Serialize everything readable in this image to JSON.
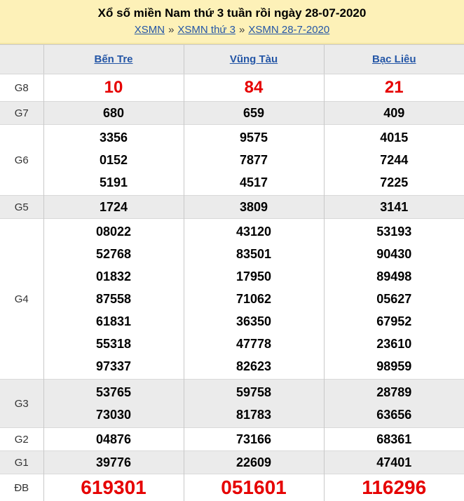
{
  "header": {
    "title": "Xổ số miền Nam thứ 3 tuần rồi ngày 28-07-2020",
    "separator": "»",
    "breadcrumb": [
      {
        "label": "XSMN"
      },
      {
        "label": "XSMN thứ 3"
      },
      {
        "label": "XSMN 28-7-2020"
      }
    ]
  },
  "table": {
    "columns": [
      "Bến Tre",
      "Vũng Tàu",
      "Bạc Liêu"
    ],
    "rows": [
      {
        "label": "G8",
        "variant": "g8",
        "shaded": false,
        "cells": [
          [
            "10"
          ],
          [
            "84"
          ],
          [
            "21"
          ]
        ]
      },
      {
        "label": "G7",
        "variant": "normal",
        "shaded": true,
        "cells": [
          [
            "680"
          ],
          [
            "659"
          ],
          [
            "409"
          ]
        ]
      },
      {
        "label": "G6",
        "variant": "normal",
        "shaded": false,
        "cells": [
          [
            "3356",
            "0152",
            "5191"
          ],
          [
            "9575",
            "7877",
            "4517"
          ],
          [
            "4015",
            "7244",
            "7225"
          ]
        ]
      },
      {
        "label": "G5",
        "variant": "normal",
        "shaded": true,
        "cells": [
          [
            "1724"
          ],
          [
            "3809"
          ],
          [
            "3141"
          ]
        ]
      },
      {
        "label": "G4",
        "variant": "normal",
        "shaded": false,
        "cells": [
          [
            "08022",
            "52768",
            "01832",
            "87558",
            "61831",
            "55318",
            "97337"
          ],
          [
            "43120",
            "83501",
            "17950",
            "71062",
            "36350",
            "47778",
            "82623"
          ],
          [
            "53193",
            "90430",
            "89498",
            "05627",
            "67952",
            "23610",
            "98959"
          ]
        ]
      },
      {
        "label": "G3",
        "variant": "normal",
        "shaded": true,
        "cells": [
          [
            "53765",
            "73030"
          ],
          [
            "59758",
            "81783"
          ],
          [
            "28789",
            "63656"
          ]
        ]
      },
      {
        "label": "G2",
        "variant": "normal",
        "shaded": false,
        "cells": [
          [
            "04876"
          ],
          [
            "73166"
          ],
          [
            "68361"
          ]
        ]
      },
      {
        "label": "G1",
        "variant": "normal",
        "shaded": true,
        "cells": [
          [
            "39776"
          ],
          [
            "22609"
          ],
          [
            "47401"
          ]
        ]
      },
      {
        "label": "ĐB",
        "variant": "db",
        "shaded": false,
        "cells": [
          [
            "619301"
          ],
          [
            "051601"
          ],
          [
            "116296"
          ]
        ]
      }
    ]
  },
  "colors": {
    "accent_red": "#e60000",
    "link_blue": "#2456a6",
    "header_yellow": "#fdf1b8",
    "shaded_row_gray": "#ebebeb"
  }
}
